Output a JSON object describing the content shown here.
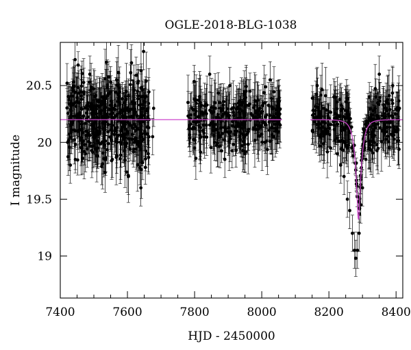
{
  "chart_data": {
    "type": "scatter",
    "title": "OGLE-2018-BLG-1038",
    "xlabel": "HJD - 2450000",
    "ylabel": "I magnitude",
    "xlim": [
      7400,
      8420
    ],
    "ylim": [
      20.88,
      18.63
    ],
    "y_inverted": true,
    "x_ticks": [
      7400,
      7600,
      7800,
      8000,
      8200,
      8400
    ],
    "y_ticks": [
      19,
      19.5,
      20,
      20.5
    ],
    "y_tick_labels": [
      "19",
      "19.5",
      "20",
      "20.5"
    ],
    "grid": false,
    "colors": {
      "points": "#000000",
      "model": "#cc44cc"
    },
    "series": [
      {
        "type": "errorbar-scatter",
        "seasons": [
          {
            "hjd_range": [
              7420,
              7665
            ],
            "baseline_mag": 20.2,
            "mag_scatter": 0.3,
            "error_typical": 0.18
          },
          {
            "hjd_range": [
              7780,
              8055
            ],
            "baseline_mag": 20.2,
            "mag_scatter": 0.22,
            "error_typical": 0.18
          },
          {
            "hjd_range": [
              8150,
              8410
            ],
            "baseline_mag": 20.2,
            "mag_scatter": 0.22,
            "error_typical": 0.18
          }
        ],
        "points": [
          [
            7422,
            20.0
          ],
          [
            7430,
            19.8
          ],
          [
            7440,
            20.45
          ],
          [
            7452,
            20.1
          ],
          [
            7463,
            20.3
          ],
          [
            7475,
            19.9
          ],
          [
            7488,
            20.6
          ],
          [
            7500,
            20.15
          ],
          [
            7512,
            19.95
          ],
          [
            7525,
            20.4
          ],
          [
            7540,
            20.25
          ],
          [
            7555,
            19.85
          ],
          [
            7568,
            20.55
          ],
          [
            7580,
            20.1
          ],
          [
            7592,
            20.35
          ],
          [
            7603,
            19.7
          ],
          [
            7612,
            20.7
          ],
          [
            7620,
            20.0
          ],
          [
            7630,
            20.45
          ],
          [
            7640,
            19.6
          ],
          [
            7648,
            20.8
          ],
          [
            7655,
            20.2
          ],
          [
            7662,
            19.9
          ],
          [
            7675,
            20.05
          ],
          [
            7678,
            20.3
          ],
          [
            7785,
            20.15
          ],
          [
            7800,
            19.95
          ],
          [
            7815,
            20.4
          ],
          [
            7830,
            20.2
          ],
          [
            7845,
            20.6
          ],
          [
            7860,
            20.0
          ],
          [
            7875,
            20.35
          ],
          [
            7890,
            19.85
          ],
          [
            7905,
            20.5
          ],
          [
            7920,
            20.1
          ],
          [
            7935,
            20.25
          ],
          [
            7950,
            19.9
          ],
          [
            7965,
            20.45
          ],
          [
            7980,
            20.15
          ],
          [
            7995,
            20.3
          ],
          [
            8010,
            20.0
          ],
          [
            8025,
            20.55
          ],
          [
            8040,
            20.2
          ],
          [
            8052,
            20.3
          ],
          [
            8155,
            20.25
          ],
          [
            8165,
            20.5
          ],
          [
            8175,
            20.05
          ],
          [
            8185,
            20.3
          ],
          [
            8195,
            20.1
          ],
          [
            8205,
            19.95
          ],
          [
            8215,
            20.4
          ],
          [
            8225,
            19.9
          ],
          [
            8235,
            19.8
          ],
          [
            8245,
            19.7
          ],
          [
            8255,
            19.5
          ],
          [
            8262,
            19.4
          ],
          [
            8270,
            19.2
          ],
          [
            8276,
            19.05
          ],
          [
            8280,
            18.98
          ],
          [
            8285,
            19.05
          ],
          [
            8290,
            19.2
          ],
          [
            8295,
            19.45
          ],
          [
            8300,
            19.6
          ],
          [
            8310,
            19.85
          ],
          [
            8320,
            20.0
          ],
          [
            8330,
            20.2
          ],
          [
            8340,
            20.4
          ],
          [
            8350,
            20.6
          ],
          [
            8360,
            20.1
          ],
          [
            8370,
            20.3
          ],
          [
            8380,
            19.95
          ],
          [
            8390,
            20.5
          ],
          [
            8400,
            20.1
          ],
          [
            8410,
            20.3
          ]
        ]
      },
      {
        "type": "model-line",
        "baseline_mag": 20.2,
        "peak_mag": 19.32,
        "t0": 8288,
        "tE": 18,
        "u0": 0.22,
        "segments": [
          [
            7400,
            8060
          ],
          [
            8145,
            8420
          ]
        ]
      }
    ]
  }
}
